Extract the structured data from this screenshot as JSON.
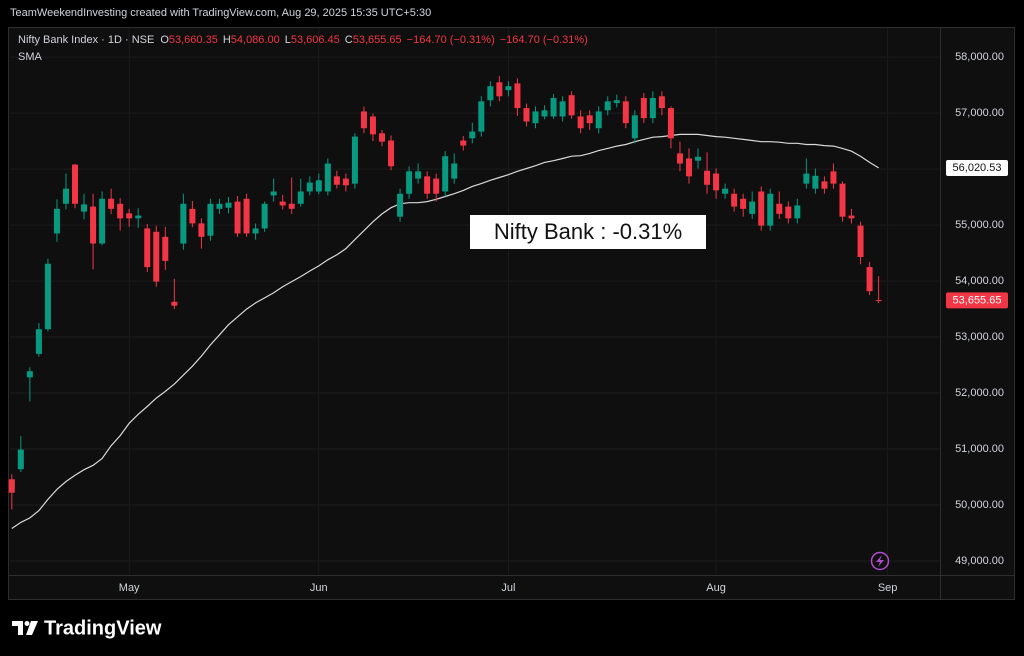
{
  "header": {
    "credit": "TeamWeekendInvesting created with TradingView.com, Aug 29, 2025 15:35 UTC+5:30"
  },
  "footer": {
    "brand": "TradingView"
  },
  "chart_data": {
    "type": "candlestick",
    "title": "Nifty Bank Index · 1D · NSE",
    "legend_ohlc": [
      {
        "label": "O",
        "value": "53,660.35"
      },
      {
        "label": "H",
        "value": "54,086.00"
      },
      {
        "label": "L",
        "value": "53,606.45"
      },
      {
        "label": "C",
        "value": "53,655.65"
      }
    ],
    "change_labels": [
      "−164.70 (−0.31%)",
      "−164.70 (−0.31%)"
    ],
    "annotation": "Nifty Bank : -0.31%",
    "up_color": "#089981",
    "down_color": "#f23645",
    "last_label": "53,655.65",
    "open": [
      50460,
      50640,
      52280,
      52700,
      53140,
      54850,
      55380,
      56080,
      55240,
      55330,
      54670,
      55470,
      55380,
      55210,
      55120,
      54940,
      54880,
      54790,
      53630,
      54670,
      55290,
      55030,
      54810,
      55290,
      55310,
      55420,
      55470,
      54850,
      54940,
      55530,
      55420,
      55380,
      55380,
      55600,
      55600,
      55600,
      55870,
      55830,
      55740,
      57030,
      56940,
      56640,
      56510,
      55150,
      55560,
      55830,
      55870,
      55830,
      55600,
      55830,
      56510,
      56550,
      56670,
      57230,
      57550,
      57410,
      57530,
      57090,
      56820,
      56940,
      56940,
      56940,
      57320,
      56940,
      56960,
      56730,
      57050,
      57180,
      57210,
      56550,
      57270,
      56910,
      57300,
      57090,
      56280,
      56190,
      56150,
      55970,
      55920,
      55560,
      55560,
      55470,
      55200,
      55600,
      54990,
      55380,
      55330,
      55120,
      55740,
      55650,
      55780,
      55960,
      55740,
      55170,
      54990,
      54250,
      53660.35
    ],
    "high": [
      50550,
      51230,
      52460,
      53250,
      54400,
      55460,
      55920,
      56090,
      55560,
      55560,
      55600,
      55650,
      55480,
      55290,
      55300,
      55020,
      54990,
      54970,
      54040,
      55560,
      55430,
      55120,
      55470,
      55470,
      55500,
      55520,
      55560,
      55030,
      55420,
      55830,
      55540,
      55850,
      55830,
      55870,
      55920,
      56190,
      55970,
      55920,
      56640,
      57120,
      56990,
      56700,
      56600,
      55650,
      56050,
      56100,
      55960,
      55920,
      56320,
      56280,
      56590,
      56830,
      57300,
      57570,
      57660,
      57570,
      57620,
      57170,
      57120,
      57140,
      57340,
      57300,
      57390,
      57050,
      57050,
      57120,
      57300,
      57330,
      57300,
      57050,
      57360,
      57390,
      57390,
      57120,
      56490,
      56370,
      56370,
      56300,
      56010,
      55740,
      55650,
      55560,
      55600,
      55690,
      55650,
      55600,
      55420,
      55470,
      56190,
      56010,
      55870,
      56100,
      55780,
      55290,
      55060,
      54340,
      54086
    ],
    "low": [
      49920,
      50590,
      51850,
      52650,
      53100,
      54700,
      55280,
      55300,
      55100,
      54210,
      54640,
      55200,
      54900,
      54970,
      54950,
      54160,
      53900,
      54200,
      53500,
      54560,
      54960,
      54580,
      54720,
      55200,
      55210,
      54790,
      54790,
      54740,
      54880,
      55420,
      55280,
      55200,
      55330,
      55530,
      55550,
      55530,
      55650,
      55600,
      55650,
      56640,
      56500,
      56410,
      55980,
      55060,
      55470,
      55740,
      55470,
      55420,
      55510,
      55740,
      56330,
      56460,
      56580,
      57120,
      57210,
      57300,
      56950,
      56760,
      56730,
      56890,
      56900,
      56850,
      56900,
      56640,
      56700,
      56640,
      56960,
      57100,
      56730,
      56460,
      56820,
      56820,
      56960,
      56370,
      55960,
      55740,
      56010,
      55560,
      55470,
      55470,
      55240,
      55150,
      55110,
      54900,
      54900,
      55110,
      55030,
      55030,
      55650,
      55560,
      55560,
      55650,
      55060,
      55030,
      54300,
      53750,
      53606.45
    ],
    "close": [
      50220,
      50990,
      52390,
      53140,
      54310,
      55290,
      55650,
      55380,
      55370,
      54670,
      55470,
      55290,
      55120,
      55120,
      55170,
      54250,
      53990,
      54360,
      53560,
      55380,
      55030,
      54790,
      55380,
      55380,
      55400,
      54850,
      54850,
      54940,
      55380,
      55600,
      55350,
      55290,
      55600,
      55760,
      55800,
      56100,
      55720,
      55710,
      56580,
      56730,
      56620,
      56490,
      56050,
      55560,
      55960,
      55960,
      55560,
      55560,
      56230,
      56100,
      56420,
      56670,
      57210,
      57480,
      57300,
      57480,
      57090,
      56850,
      57030,
      57050,
      57270,
      57210,
      56960,
      56730,
      56820,
      57030,
      57210,
      57230,
      56820,
      56960,
      56910,
      57270,
      57090,
      56550,
      56100,
      55870,
      56220,
      55720,
      55620,
      55650,
      55330,
      55290,
      55420,
      54990,
      55560,
      55200,
      55120,
      55350,
      55920,
      55880,
      55650,
      55740,
      55150,
      55120,
      54430,
      53820,
      53655.65
    ],
    "overlays": [
      {
        "name": "SMA",
        "color": "#d9d9d9",
        "last_label": "56,020.53",
        "values": [
          49580,
          49690,
          49770,
          49900,
          50100,
          50280,
          50420,
          50530,
          50630,
          50710,
          50830,
          51060,
          51240,
          51460,
          51620,
          51760,
          51910,
          52030,
          52160,
          52320,
          52480,
          52660,
          52860,
          53040,
          53220,
          53360,
          53500,
          53610,
          53700,
          53790,
          53900,
          53990,
          54080,
          54180,
          54270,
          54380,
          54470,
          54580,
          54740,
          54900,
          55060,
          55200,
          55310,
          55380,
          55400,
          55400,
          55420,
          55460,
          55510,
          55560,
          55620,
          55690,
          55740,
          55800,
          55850,
          55900,
          55960,
          56010,
          56060,
          56120,
          56150,
          56190,
          56230,
          56240,
          56280,
          56330,
          56370,
          56410,
          56440,
          56490,
          56530,
          56570,
          56580,
          56600,
          56620,
          56620,
          56620,
          56600,
          56580,
          56570,
          56550,
          56530,
          56510,
          56490,
          56490,
          56480,
          56460,
          56460,
          56440,
          56440,
          56420,
          56410,
          56370,
          56320,
          56230,
          56120,
          56020.53
        ]
      }
    ],
    "xlim": [
      -0.2,
      102.8
    ],
    "xticks": [
      {
        "value": 13,
        "label": "May"
      },
      {
        "value": 34,
        "label": "Jun"
      },
      {
        "value": 55,
        "label": "Jul"
      },
      {
        "value": 78,
        "label": "Aug"
      },
      {
        "value": 97,
        "label": "Sep"
      }
    ],
    "ylim": [
      48750,
      58520
    ],
    "yticks": [
      {
        "value": 49000,
        "label": "49,000.00"
      },
      {
        "value": 50000,
        "label": "50,000.00"
      },
      {
        "value": 51000,
        "label": "51,000.00"
      },
      {
        "value": 52000,
        "label": "52,000.00"
      },
      {
        "value": 53000,
        "label": "53,000.00"
      },
      {
        "value": 54000,
        "label": "54,000.00"
      },
      {
        "value": 55000,
        "label": "55,000.00"
      },
      {
        "value": 56000,
        "label": "56,000.00"
      },
      {
        "value": 57000,
        "label": "57,000.00"
      },
      {
        "value": 58000,
        "label": "58,000.00"
      }
    ],
    "grid": true
  }
}
